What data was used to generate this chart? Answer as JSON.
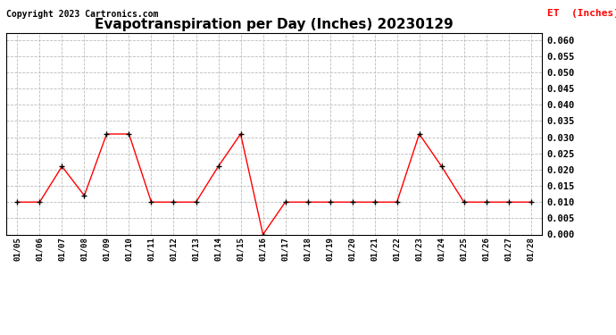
{
  "title": "Evapotranspiration per Day (Inches) 20230129",
  "copyright": "Copyright 2023 Cartronics.com",
  "legend_label": "ET  (Inches)",
  "dates": [
    "01/05",
    "01/06",
    "01/07",
    "01/08",
    "01/09",
    "01/10",
    "01/11",
    "01/12",
    "01/13",
    "01/14",
    "01/15",
    "01/16",
    "01/17",
    "01/18",
    "01/19",
    "01/20",
    "01/21",
    "01/22",
    "01/23",
    "01/24",
    "01/25",
    "01/26",
    "01/27",
    "01/28"
  ],
  "values": [
    0.01,
    0.01,
    0.021,
    0.012,
    0.031,
    0.031,
    0.01,
    0.01,
    0.01,
    0.021,
    0.031,
    0.0,
    0.01,
    0.01,
    0.01,
    0.01,
    0.01,
    0.01,
    0.031,
    0.021,
    0.01,
    0.01,
    0.01,
    0.01
  ],
  "ylim": [
    0.0,
    0.062
  ],
  "yticks": [
    0.0,
    0.005,
    0.01,
    0.015,
    0.02,
    0.025,
    0.03,
    0.035,
    0.04,
    0.045,
    0.05,
    0.055,
    0.06
  ],
  "line_color": "red",
  "marker_color": "black",
  "grid_color": "#bbbbbb",
  "background_color": "white",
  "title_fontsize": 11,
  "copyright_fontsize": 7,
  "legend_color": "red",
  "legend_fontsize": 8
}
